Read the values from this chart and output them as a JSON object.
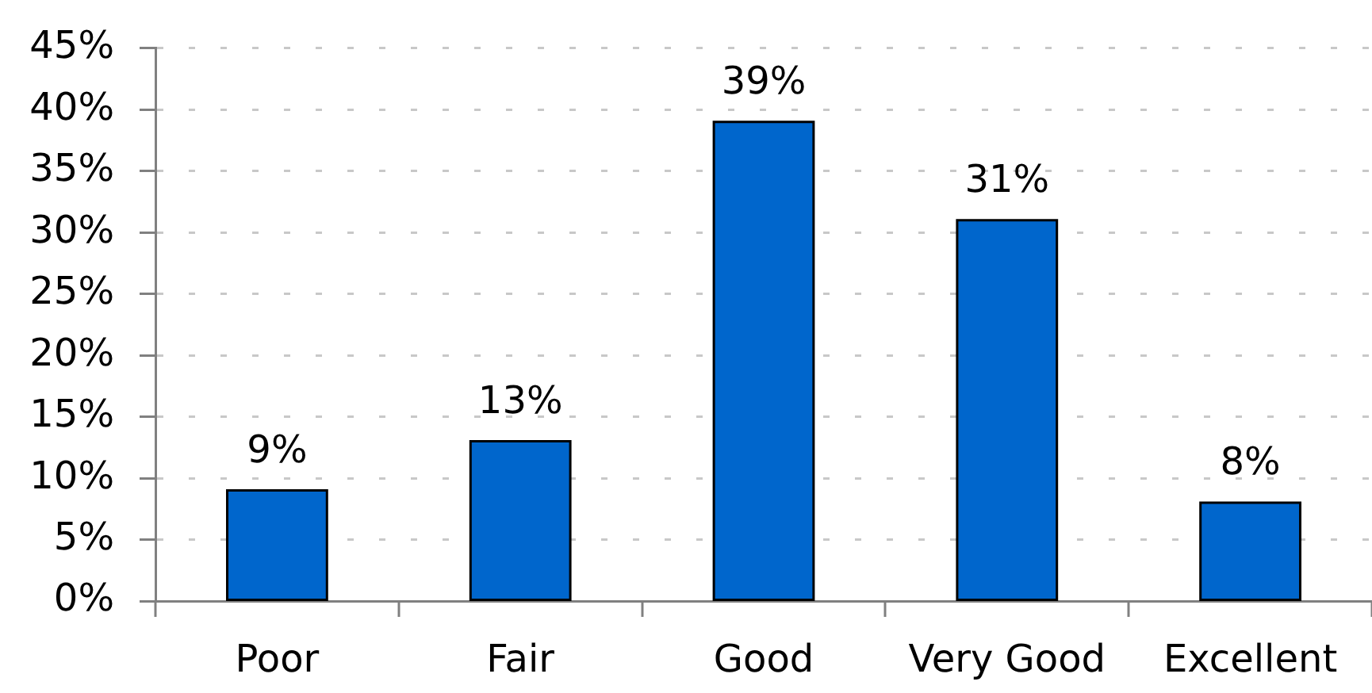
{
  "chart_data": {
    "type": "bar",
    "categories": [
      "Poor",
      "Fair",
      "Good",
      "Very Good",
      "Excellent"
    ],
    "values": [
      9,
      13,
      39,
      31,
      8
    ],
    "color": "#0066cc",
    "value_labels": [
      "9%",
      "13%",
      "39%",
      "31%",
      "8%"
    ],
    "ylim": [
      0,
      45
    ],
    "yticks": [
      {
        "value": 0,
        "label": "0%"
      },
      {
        "value": 5,
        "label": "5%"
      },
      {
        "value": 10,
        "label": "10%"
      },
      {
        "value": 15,
        "label": "15%"
      },
      {
        "value": 20,
        "label": "20%"
      },
      {
        "value": 25,
        "label": "25%"
      },
      {
        "value": 30,
        "label": "30%"
      },
      {
        "value": 35,
        "label": "35%"
      },
      {
        "value": 40,
        "label": "40%"
      },
      {
        "value": 45,
        "label": "45%"
      }
    ],
    "grid": "y"
  }
}
